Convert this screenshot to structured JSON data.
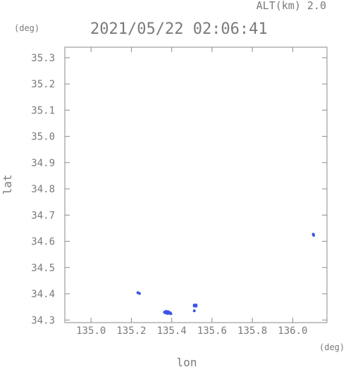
{
  "header": {
    "alt_label": "ALT(km) 2.0",
    "timestamp": "2021/05/22 02:06:41",
    "y_unit": "(deg)",
    "x_unit": "(deg)"
  },
  "chart_data": {
    "type": "scatter",
    "xlabel": "lon",
    "ylabel": "lat",
    "xlim": [
      134.87,
      136.17
    ],
    "ylim": [
      34.29,
      35.34
    ],
    "x_ticks": [
      {
        "value": 135.0,
        "label": "135.0"
      },
      {
        "value": 135.2,
        "label": "135.2"
      },
      {
        "value": 135.4,
        "label": "135.4"
      },
      {
        "value": 135.6,
        "label": "135.6"
      },
      {
        "value": 135.8,
        "label": "135.8"
      },
      {
        "value": 136.0,
        "label": "136.0"
      }
    ],
    "y_ticks": [
      {
        "value": 34.3,
        "label": "34.3"
      },
      {
        "value": 34.4,
        "label": "34.4"
      },
      {
        "value": 34.5,
        "label": "34.5"
      },
      {
        "value": 34.6,
        "label": "34.6"
      },
      {
        "value": 34.7,
        "label": "34.7"
      },
      {
        "value": 34.8,
        "label": "34.8"
      },
      {
        "value": 34.9,
        "label": "34.9"
      },
      {
        "value": 35.0,
        "label": "35.0"
      },
      {
        "value": 35.1,
        "label": "35.1"
      },
      {
        "value": 35.2,
        "label": "35.2"
      },
      {
        "value": 35.3,
        "label": "35.3"
      }
    ],
    "grid": false,
    "point_color": "#3d55e6",
    "points": [
      {
        "x": 135.232,
        "y": 34.404
      },
      {
        "x": 135.24,
        "y": 34.401
      },
      {
        "x": 135.364,
        "y": 34.33
      },
      {
        "x": 135.37,
        "y": 34.327
      },
      {
        "x": 135.376,
        "y": 34.331
      },
      {
        "x": 135.38,
        "y": 34.325
      },
      {
        "x": 135.384,
        "y": 34.329
      },
      {
        "x": 135.388,
        "y": 34.326
      },
      {
        "x": 135.392,
        "y": 34.328
      },
      {
        "x": 135.372,
        "y": 34.333
      },
      {
        "x": 135.382,
        "y": 34.332
      },
      {
        "x": 135.396,
        "y": 34.324
      },
      {
        "x": 135.512,
        "y": 34.357
      },
      {
        "x": 135.512,
        "y": 34.353
      },
      {
        "x": 135.521,
        "y": 34.357
      },
      {
        "x": 135.521,
        "y": 34.353
      },
      {
        "x": 135.512,
        "y": 34.335
      },
      {
        "x": 136.102,
        "y": 34.627
      },
      {
        "x": 136.104,
        "y": 34.623
      }
    ]
  }
}
